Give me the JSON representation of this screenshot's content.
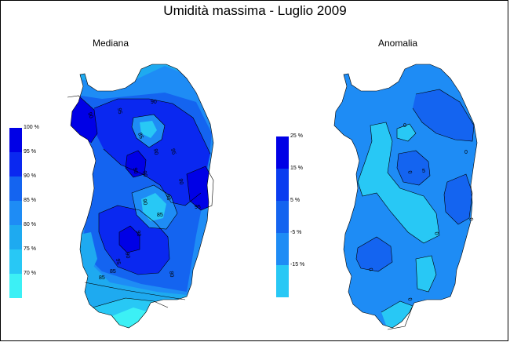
{
  "title": "Umidità massima - Luglio 2009",
  "maps": {
    "left": {
      "subtitle": "Mediana",
      "legend_labels": [
        "100 %",
        "95 %",
        "90 %",
        "85 %",
        "80 %",
        "75 %",
        "70 %"
      ],
      "colors": [
        "#0000e6",
        "#0a28f0",
        "#1464f0",
        "#1e8cf5",
        "#1eaaf0",
        "#28c8f5",
        "#3cf0f5"
      ],
      "contour_labels": [
        "90",
        "95",
        "90",
        "85",
        "90",
        "95",
        "90",
        "90",
        "85",
        "90",
        "95",
        "90",
        "85",
        "90",
        "95",
        "90",
        "85",
        "80",
        "85"
      ]
    },
    "right": {
      "subtitle": "Anomalia",
      "legend_labels": [
        "25 %",
        "15 %",
        "5 %",
        "-5 %",
        "-15 %"
      ],
      "colors": [
        "#0000e6",
        "#0a3cf0",
        "#1464f0",
        "#1e8cf5",
        "#28c8f5"
      ],
      "contour_labels": [
        "0",
        "0",
        "5",
        "0",
        "0",
        "0",
        "0",
        "0"
      ]
    }
  }
}
